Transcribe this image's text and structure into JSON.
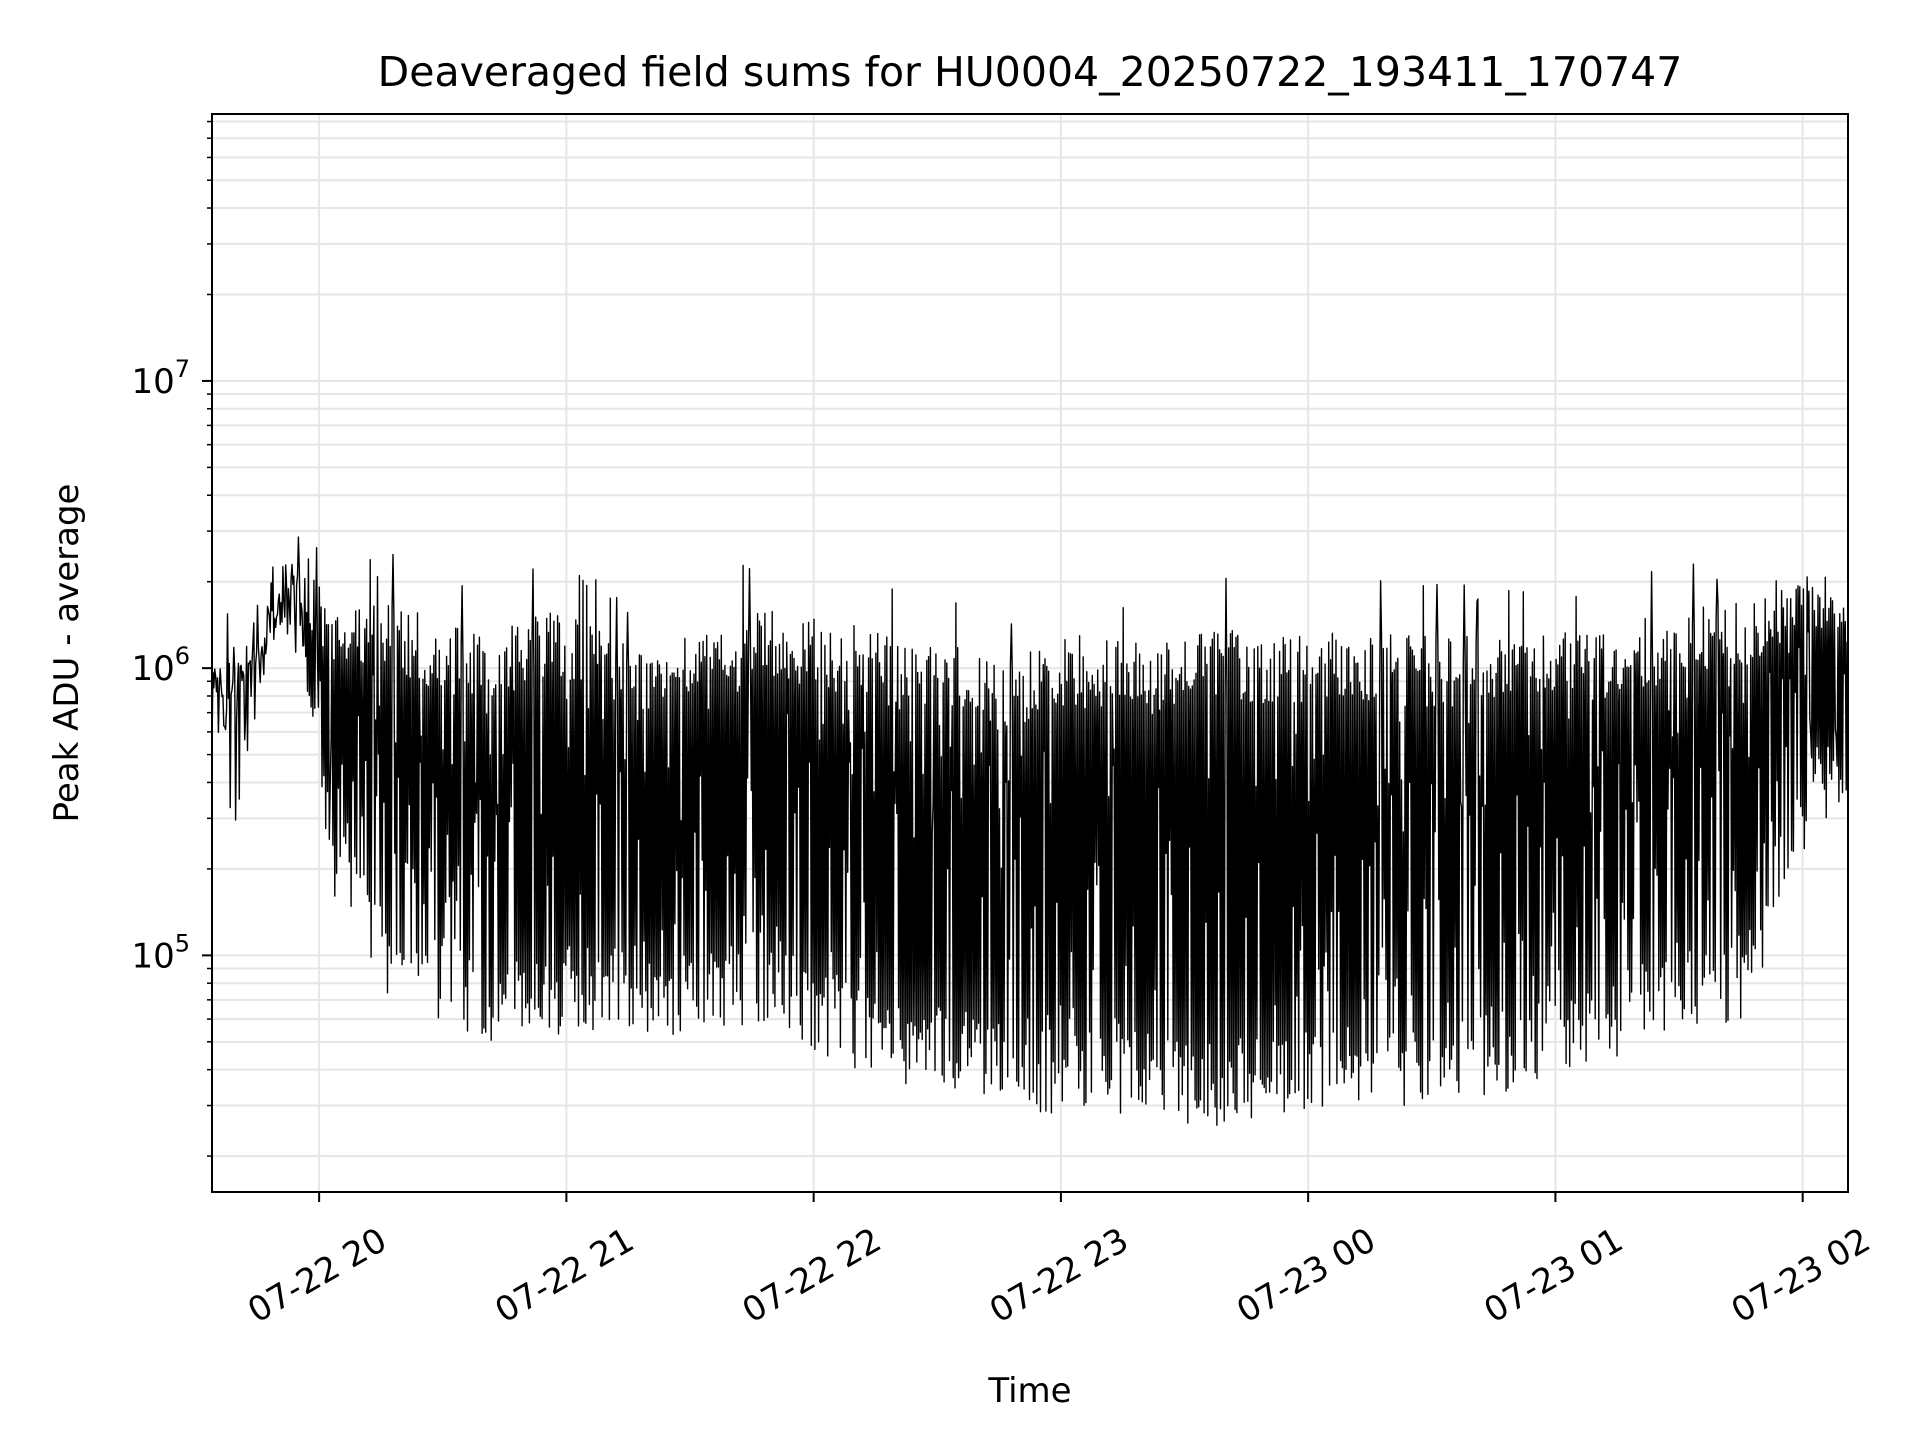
{
  "chart_data": {
    "type": "line",
    "title": "Deaveraged field sums for HU0004_20250722_193411_170747",
    "xlabel": "Time",
    "ylabel": "Peak ADU - average",
    "y_scale": "log",
    "ylim": [
      15000,
      85000000
    ],
    "xlim": [
      "07-22 19:34",
      "07-23 02:11"
    ],
    "x_ticks": [
      "07-22 20",
      "07-22 21",
      "07-22 22",
      "07-22 23",
      "07-23 00",
      "07-23 01",
      "07-23 02"
    ],
    "y_ticks": [
      {
        "base": "10",
        "exp": "5"
      },
      {
        "base": "10",
        "exp": "6"
      },
      {
        "base": "10",
        "exp": "7"
      }
    ],
    "grid": true,
    "legend": "none",
    "line_color": "#000000",
    "envelope_points_hours_after_start": [
      0,
      0.15,
      0.25,
      0.35,
      0.5,
      0.7,
      0.9,
      1.1,
      1.3,
      1.5,
      1.7,
      1.9,
      2.1,
      2.3,
      2.45,
      2.6,
      2.8,
      3.0,
      3.2,
      3.4,
      3.6,
      3.8,
      4.0,
      4.3,
      4.6,
      4.8,
      5.0,
      5.2,
      5.4,
      5.6,
      5.8,
      6.0,
      6.2,
      6.3,
      6.45,
      6.6
    ],
    "series": [
      {
        "upper": [
          900000,
          1500000,
          2000000,
          2800000,
          1600000,
          1700000,
          1500000,
          1300000,
          1600000,
          1600000,
          1200000,
          1300000,
          1500000,
          1600000,
          1500000,
          1500000,
          1200000,
          1200000,
          1000000,
          1300000,
          1300000,
          1200000,
          1400000,
          1300000,
          1400000,
          1300000,
          1300000,
          1300000,
          1400000,
          1300000,
          1500000,
          1600000,
          1800000,
          2000000,
          2600000,
          1800000
        ],
        "lower": [
          600000,
          500000,
          1300000,
          1200000,
          150000,
          70000,
          60000,
          50000,
          50000,
          55000,
          55000,
          50000,
          55000,
          60000,
          45000,
          40000,
          35000,
          33000,
          30000,
          28000,
          28000,
          27000,
          25000,
          27000,
          30000,
          28000,
          30000,
          32000,
          35000,
          40000,
          50000,
          55000,
          60000,
          100000,
          250000,
          350000
        ]
      }
    ]
  }
}
